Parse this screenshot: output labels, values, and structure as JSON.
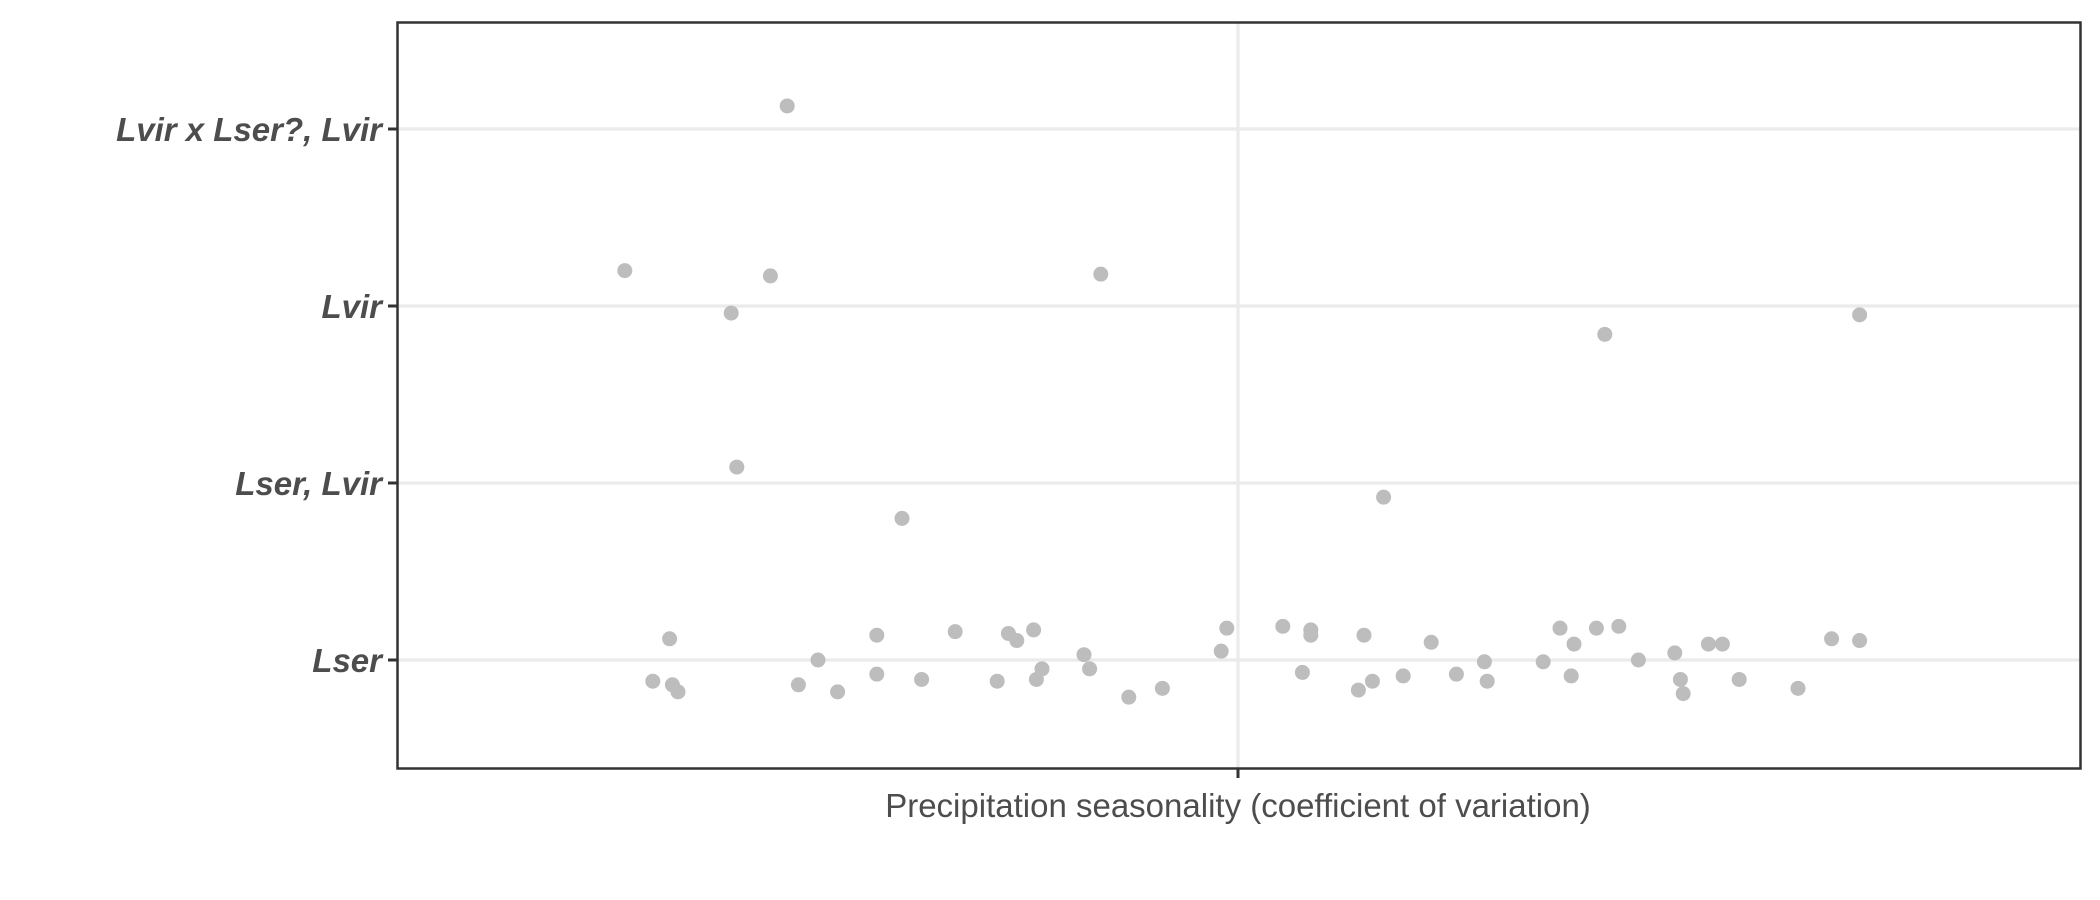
{
  "chart_data": {
    "type": "scatter",
    "title": "",
    "xlabel": "Precipitation seasonality (coefficient of variation)",
    "ylabel": "",
    "y_categories": [
      "Lser",
      "Lser, Lvir",
      "Lvir",
      "Lvir x Lser?, Lvir"
    ],
    "x_tick_labels": [],
    "jitter": true,
    "grid": true,
    "point_color": "#bdbdbd",
    "series": [
      {
        "category": "Lvir x Lser?, Lvir",
        "points": [
          [
            -1.61,
            0.13
          ]
        ]
      },
      {
        "category": "Lvir",
        "points": [
          [
            -2.19,
            0.2
          ],
          [
            -1.81,
            -0.04
          ],
          [
            -1.67,
            0.17
          ],
          [
            -0.49,
            0.18
          ],
          [
            1.31,
            -0.16
          ],
          [
            2.22,
            -0.05
          ]
        ]
      },
      {
        "category": "Lser, Lvir",
        "points": [
          [
            -1.79,
            0.09
          ],
          [
            -1.2,
            -0.2
          ],
          [
            0.52,
            -0.08
          ]
        ]
      },
      {
        "category": "Lser",
        "points": [
          [
            -2.09,
            -0.12
          ],
          [
            -2.03,
            0.12
          ],
          [
            -2.02,
            -0.14
          ],
          [
            -2.0,
            -0.18
          ],
          [
            -1.57,
            -0.14
          ],
          [
            -1.5,
            0.0
          ],
          [
            -1.43,
            -0.18
          ],
          [
            -1.29,
            0.14
          ],
          [
            -1.29,
            -0.08
          ],
          [
            -1.13,
            -0.11
          ],
          [
            -1.01,
            0.16
          ],
          [
            -0.86,
            -0.12
          ],
          [
            -0.82,
            0.15
          ],
          [
            -0.79,
            0.11
          ],
          [
            -0.73,
            0.17
          ],
          [
            -0.72,
            -0.11
          ],
          [
            -0.7,
            -0.05
          ],
          [
            -0.55,
            0.03
          ],
          [
            -0.53,
            -0.05
          ],
          [
            -0.39,
            -0.21
          ],
          [
            -0.27,
            -0.16
          ],
          [
            -0.06,
            0.05
          ],
          [
            -0.04,
            0.18
          ],
          [
            0.16,
            0.19
          ],
          [
            0.23,
            -0.07
          ],
          [
            0.26,
            0.17
          ],
          [
            0.26,
            0.14
          ],
          [
            0.43,
            -0.17
          ],
          [
            0.45,
            0.14
          ],
          [
            0.48,
            -0.12
          ],
          [
            0.59,
            -0.09
          ],
          [
            0.69,
            0.1
          ],
          [
            0.78,
            -0.08
          ],
          [
            0.88,
            -0.01
          ],
          [
            0.89,
            -0.12
          ],
          [
            1.09,
            -0.01
          ],
          [
            1.15,
            0.18
          ],
          [
            1.19,
            -0.09
          ],
          [
            1.2,
            0.09
          ],
          [
            1.28,
            0.18
          ],
          [
            1.36,
            0.19
          ],
          [
            1.43,
            0.0
          ],
          [
            1.56,
            0.04
          ],
          [
            1.58,
            -0.11
          ],
          [
            1.59,
            -0.19
          ],
          [
            1.68,
            0.09
          ],
          [
            1.73,
            0.09
          ],
          [
            1.79,
            -0.11
          ],
          [
            2.0,
            -0.16
          ],
          [
            2.12,
            0.12
          ],
          [
            2.22,
            0.11
          ]
        ]
      }
    ]
  }
}
